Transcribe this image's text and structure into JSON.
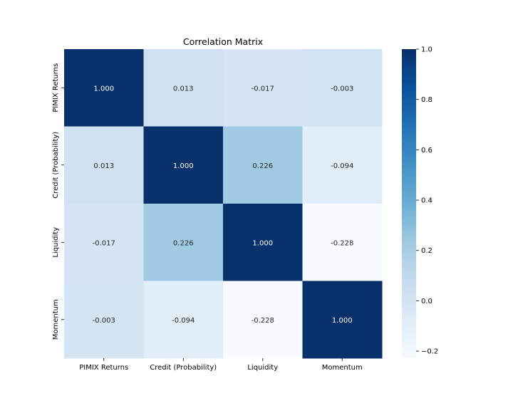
{
  "chart_data": {
    "type": "heatmap",
    "title": "Correlation Matrix",
    "xlabel": "",
    "ylabel": "",
    "x_labels": [
      "PIMIX Returns",
      "Credit (Probability)",
      "Liquidity",
      "Momentum"
    ],
    "y_labels": [
      "PIMIX Returns",
      "Credit (Probability)",
      "Liquidity",
      "Momentum"
    ],
    "matrix": [
      [
        1.0,
        0.013,
        -0.017,
        -0.003
      ],
      [
        0.013,
        1.0,
        0.226,
        -0.094
      ],
      [
        -0.017,
        0.226,
        1.0,
        -0.228
      ],
      [
        -0.003,
        -0.094,
        -0.228,
        1.0
      ]
    ],
    "cell_labels": [
      [
        "1.000",
        "0.013",
        "-0.017",
        "-0.003"
      ],
      [
        "0.013",
        "1.000",
        "0.226",
        "-0.094"
      ],
      [
        "-0.017",
        "0.226",
        "1.000",
        "-0.228"
      ],
      [
        "-0.003",
        "-0.094",
        "-0.228",
        "1.000"
      ]
    ],
    "colormap": "Blues",
    "color_low": "#f7fbff",
    "color_high": "#08306b",
    "colorbar": {
      "vmin": -0.228,
      "vmax": 1.0,
      "ticks": [
        1.0,
        0.8,
        0.6,
        0.4,
        0.2,
        0.0,
        -0.2
      ],
      "tick_labels": [
        "1.0",
        "0.8",
        "0.6",
        "0.4",
        "0.2",
        "0.0",
        "−0.2"
      ]
    }
  }
}
